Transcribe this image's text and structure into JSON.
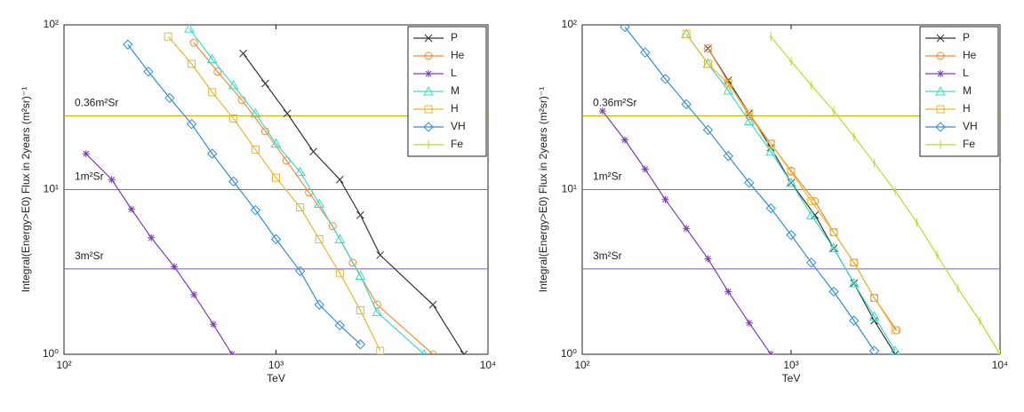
{
  "chart_data": [
    {
      "type": "line",
      "xlabel": "TeV",
      "ylabel": "Integral(Energy>E0) Flux in 2years (m²sr)⁻¹",
      "xscale": "log",
      "yscale": "log",
      "xlim": [
        100,
        10000
      ],
      "ylim": [
        1,
        100
      ],
      "xticks": [
        {
          "value": 100,
          "label": "10²"
        },
        {
          "value": 1000,
          "label": "10³"
        },
        {
          "value": 10000,
          "label": "10⁴"
        }
      ],
      "yticks": [
        {
          "value": 1,
          "label": "10⁰"
        },
        {
          "value": 10,
          "label": "10¹"
        },
        {
          "value": 100,
          "label": "10²"
        }
      ],
      "legend": "upper right",
      "reference_lines": [
        {
          "label": "0.36m²Sr",
          "value": 28,
          "color": "#c9b100"
        },
        {
          "label": "1m²Sr",
          "value": 10,
          "color": "#3c9a70"
        },
        {
          "label": "3m²Sr",
          "value": 3.3,
          "color": "#7b5cc0"
        }
      ],
      "series": [
        {
          "name": "P",
          "color": "#333333",
          "marker": "x",
          "x": [
            700,
            890,
            1130,
            1500,
            2000,
            2500,
            3100,
            5500,
            7700
          ],
          "values": [
            67,
            44,
            29,
            17,
            11.5,
            7,
            4,
            2,
            1
          ]
        },
        {
          "name": "He",
          "color": "#f28c3c",
          "marker": "circle",
          "x": [
            410,
            530,
            690,
            890,
            1120,
            1430,
            1850,
            2300,
            3000,
            5500
          ],
          "values": [
            78,
            52,
            35,
            22.6,
            15,
            9.6,
            6,
            3.6,
            2.0,
            1.0
          ]
        },
        {
          "name": "L",
          "color": "#7b3fb5",
          "marker": "star",
          "x": [
            127,
            168,
            208,
            258,
            331,
            410,
            506,
            620
          ],
          "values": [
            16.5,
            11.5,
            7.6,
            5.1,
            3.4,
            2.3,
            1.52,
            1.0
          ]
        },
        {
          "name": "M",
          "color": "#3fd9c4",
          "marker": "triangle",
          "x": [
            390,
            500,
            630,
            800,
            1000,
            1300,
            1600,
            2000,
            2500,
            3000,
            5000
          ],
          "values": [
            95,
            62,
            43,
            29,
            19,
            12.8,
            8.2,
            5,
            3,
            1.8,
            1.0
          ]
        },
        {
          "name": "H",
          "color": "#e8b830",
          "marker": "square",
          "x": [
            310,
            400,
            500,
            630,
            800,
            1000,
            1300,
            1600,
            2000,
            2500,
            3100
          ],
          "values": [
            85,
            58,
            39,
            27,
            17.5,
            11.8,
            7.8,
            5,
            3.1,
            1.85,
            1.05
          ]
        },
        {
          "name": "VH",
          "color": "#2f8fd8",
          "marker": "diamond",
          "x": [
            200,
            250,
            315,
            400,
            500,
            630,
            800,
            1000,
            1300,
            1600,
            2000,
            2500
          ],
          "values": [
            76,
            52,
            36,
            25,
            16.5,
            11.2,
            7.5,
            5,
            3.2,
            2,
            1.5,
            1.15
          ]
        },
        {
          "name": "Fe",
          "color": "#b5e02a",
          "marker": "plus",
          "x": [],
          "values": []
        }
      ]
    },
    {
      "type": "line",
      "xlabel": "TeV",
      "ylabel": "Integral(Energy>E0) Flux in 2years (m²sr)⁻¹",
      "xscale": "log",
      "yscale": "log",
      "xlim": [
        100,
        10000
      ],
      "ylim": [
        1,
        100
      ],
      "xticks": [
        {
          "value": 100,
          "label": "10²"
        },
        {
          "value": 1000,
          "label": "10³"
        },
        {
          "value": 10000,
          "label": "10⁴"
        }
      ],
      "yticks": [
        {
          "value": 1,
          "label": "10⁰"
        },
        {
          "value": 10,
          "label": "10¹"
        },
        {
          "value": 100,
          "label": "10²"
        }
      ],
      "legend": "upper right",
      "reference_lines": [
        {
          "label": "0.36m²Sr",
          "value": 28,
          "color": "#c9b100"
        },
        {
          "label": "1m²Sr",
          "value": 10,
          "color": "#3c9a70"
        },
        {
          "label": "3m²Sr",
          "value": 3.3,
          "color": "#7b5cc0"
        }
      ],
      "series": [
        {
          "name": "P",
          "color": "#333333",
          "marker": "x",
          "x": [
            400,
            500,
            630,
            800,
            1000,
            1300,
            1600,
            2000,
            2500,
            3150
          ],
          "values": [
            72,
            46,
            29,
            18,
            11,
            7,
            4.4,
            2.7,
            1.6,
            1.0
          ]
        },
        {
          "name": "He",
          "color": "#f28c3c",
          "marker": "circle",
          "x": [
            400,
            500,
            630,
            800,
            1000,
            1300,
            1600,
            2000,
            2500,
            3200
          ],
          "values": [
            72,
            45,
            28,
            19,
            13,
            8.5,
            5.5,
            3.6,
            2.2,
            1.4
          ]
        },
        {
          "name": "L",
          "color": "#7b3fb5",
          "marker": "star",
          "x": [
            125,
            160,
            200,
            250,
            315,
            400,
            500,
            630,
            800
          ],
          "values": [
            30,
            20,
            13.3,
            8.7,
            5.8,
            3.8,
            2.4,
            1.55,
            1.0
          ]
        },
        {
          "name": "M",
          "color": "#3fd9c4",
          "marker": "triangle",
          "x": [
            315,
            400,
            500,
            630,
            800,
            1000,
            1250,
            1600,
            2000,
            2500,
            3150
          ],
          "values": [
            88,
            58,
            40,
            26,
            17,
            11,
            7,
            4.4,
            2.7,
            1.7,
            1.05
          ]
        },
        {
          "name": "H",
          "color": "#e8b830",
          "marker": "square",
          "x": [
            315,
            400,
            500,
            630,
            800,
            1000,
            1250,
            1600,
            2000,
            2500,
            3150
          ],
          "values": [
            88,
            58,
            44,
            29,
            19,
            12.8,
            8.5,
            5.5,
            3.6,
            2.2,
            1.4
          ]
        },
        {
          "name": "VH",
          "color": "#2f8fd8",
          "marker": "diamond",
          "x": [
            160,
            200,
            250,
            315,
            400,
            500,
            630,
            800,
            1000,
            1250,
            1600,
            2000,
            2500
          ],
          "values": [
            97,
            68,
            47,
            33,
            23,
            16,
            11,
            7.7,
            5.3,
            3.6,
            2.4,
            1.6,
            1.05
          ]
        },
        {
          "name": "Fe",
          "color": "#b5e02a",
          "marker": "plus",
          "x": [
            800,
            1000,
            1250,
            1600,
            2000,
            2500,
            3150,
            4000,
            5000,
            6300,
            8000,
            10000
          ],
          "values": [
            85,
            60,
            43,
            30,
            21,
            14.5,
            9.8,
            6.3,
            4,
            2.5,
            1.6,
            1.0
          ]
        }
      ]
    }
  ]
}
